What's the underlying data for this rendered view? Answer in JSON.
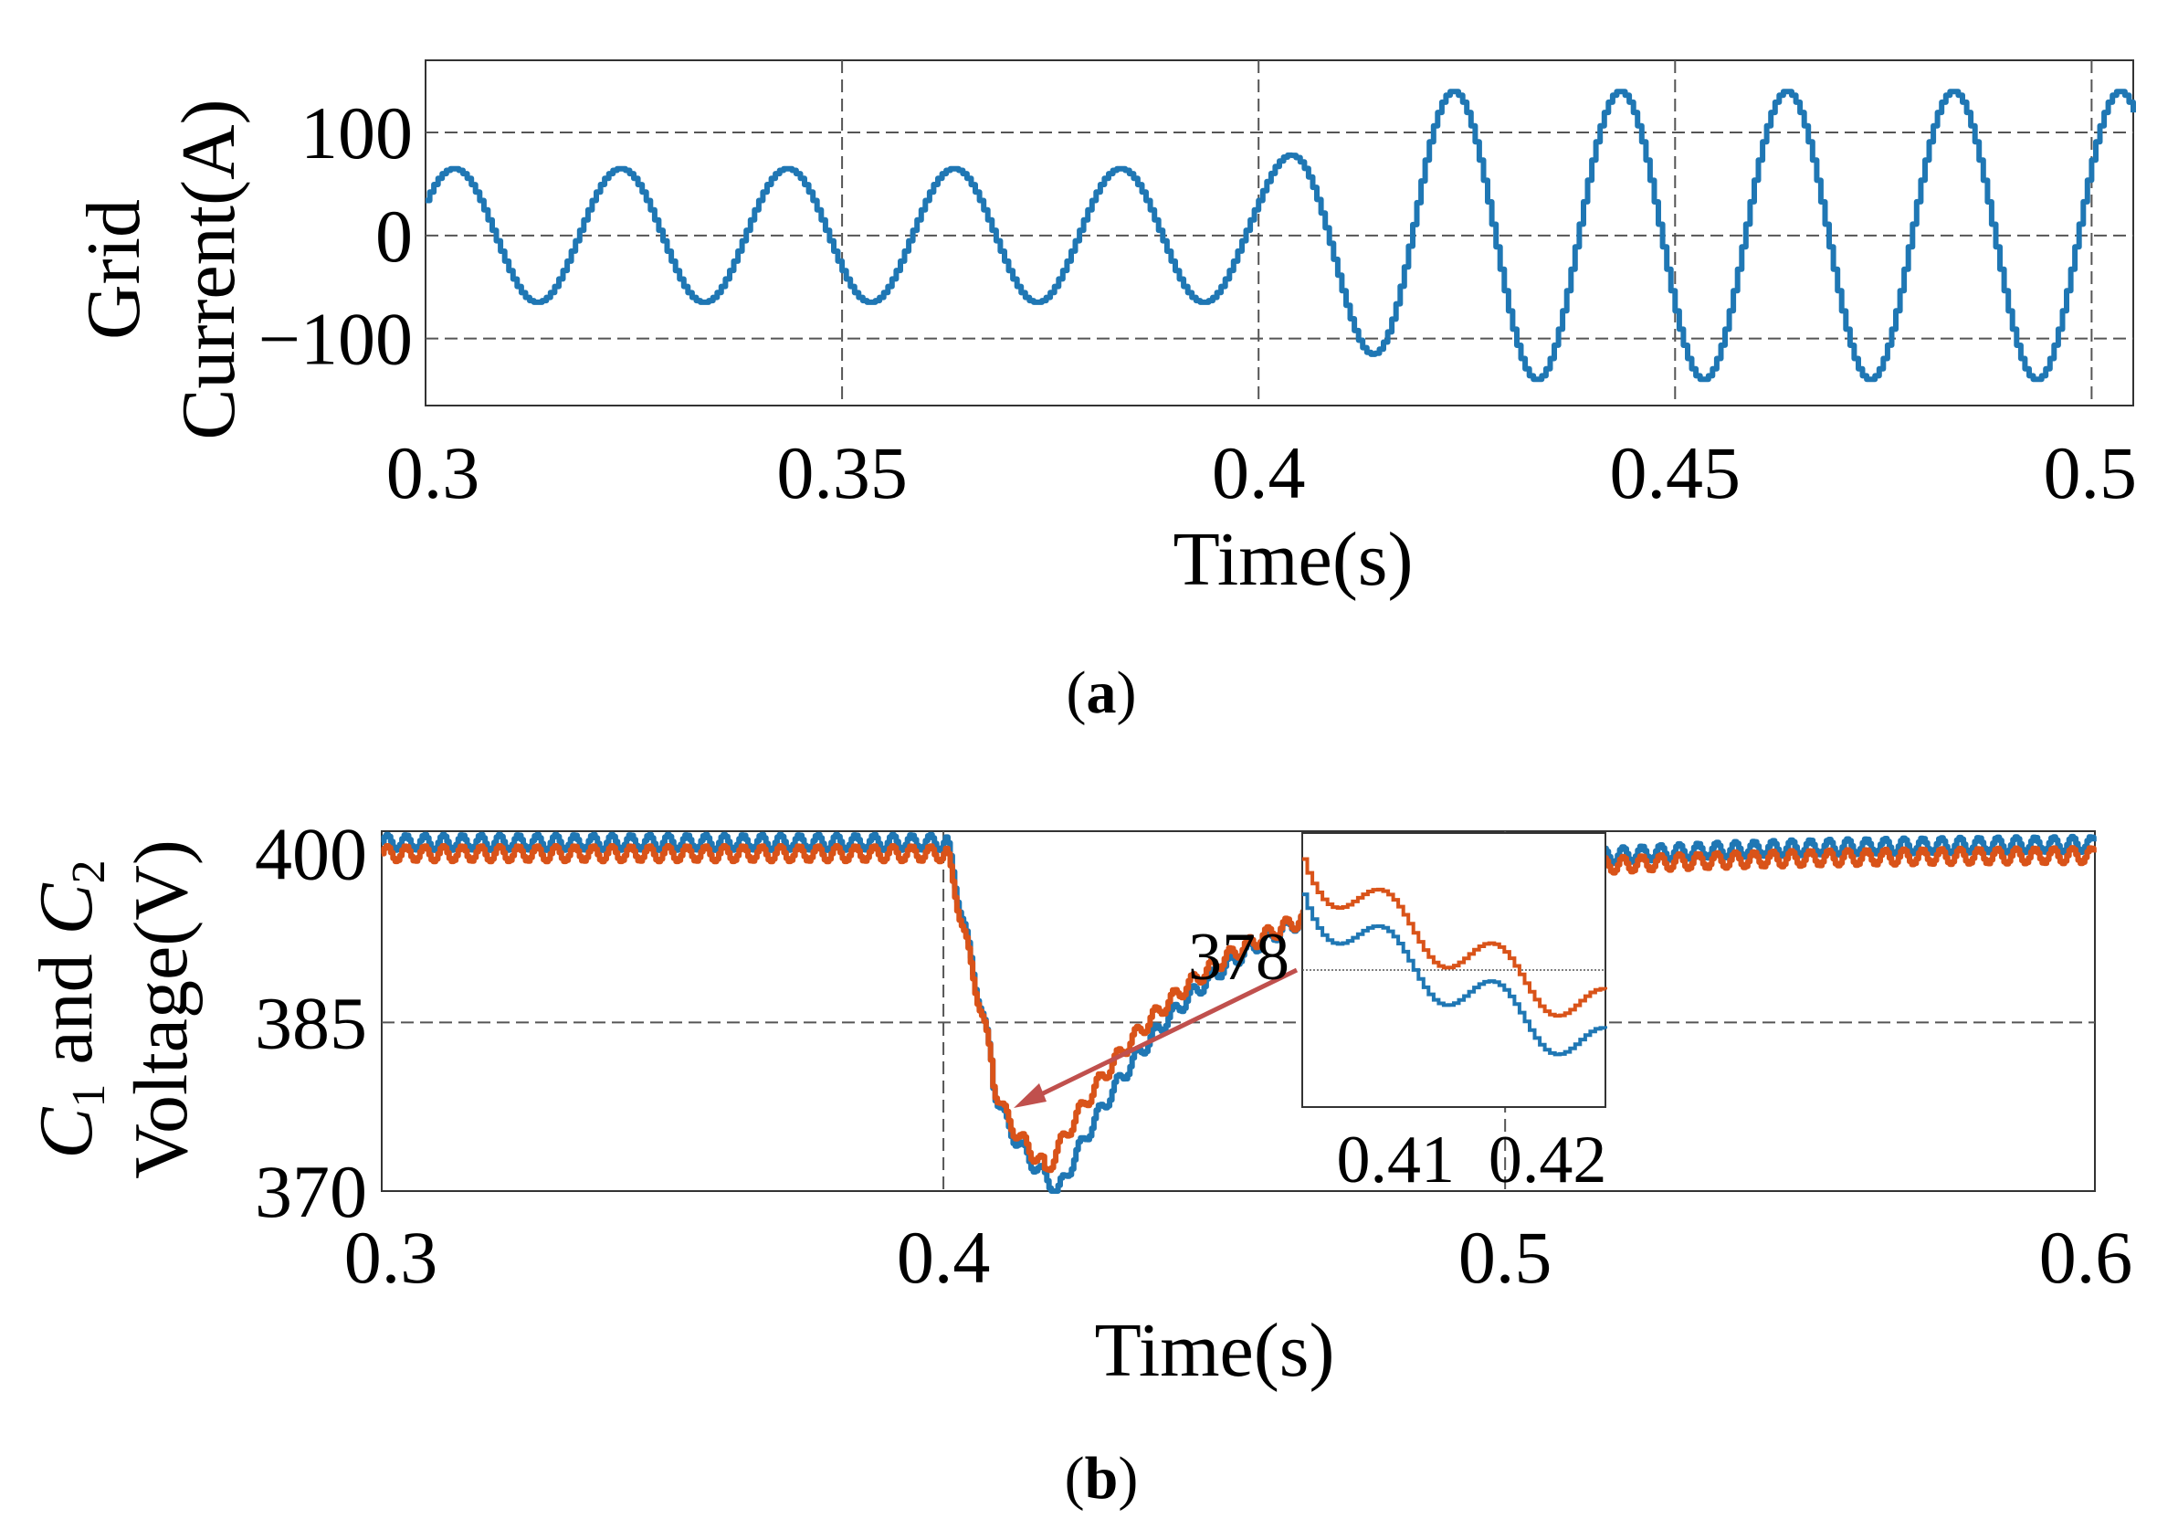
{
  "chart_data": [
    {
      "id": "a",
      "type": "line",
      "panel_label": {
        "open": "(",
        "letter": "a",
        "close": ")"
      },
      "ylabel_lines": [
        "Grid",
        "Current(A)"
      ],
      "xlabel": "Time(s)",
      "xlim": [
        0.3,
        0.505
      ],
      "ylim": [
        -165,
        170
      ],
      "xticks": [
        0.3,
        0.35,
        0.4,
        0.45,
        0.5
      ],
      "xtick_labels": [
        "0.3",
        "0.35",
        "0.4",
        "0.45",
        "0.5"
      ],
      "yticks": [
        -100,
        0,
        100
      ],
      "ytick_labels": [
        "−100",
        "0",
        "100"
      ],
      "grid": true,
      "series": [
        {
          "name": "Grid current",
          "color": "#1f77b4",
          "frequency_hz": 50,
          "amplitude_before": 65,
          "amplitude_after": 140,
          "step_time": 0.4,
          "x_start": 0.3,
          "x_end": 0.505,
          "stairstep": 0.0005
        }
      ]
    },
    {
      "id": "b",
      "type": "line",
      "panel_label": {
        "open": "(",
        "letter": "b",
        "close": ")"
      },
      "ylabel_line1": {
        "c1": "C",
        "sub1": "1",
        "mid": " and ",
        "c2": "C",
        "sub2": "2"
      },
      "ylabel_line2": "Voltage(V)",
      "xlabel": "Time(s)",
      "xlim": [
        0.3,
        0.605
      ],
      "ylim": [
        370,
        402
      ],
      "xticks": [
        0.3,
        0.4,
        0.5,
        0.6
      ],
      "xtick_labels": [
        "0.3",
        "0.4",
        "0.5",
        "0.6"
      ],
      "yticks": [
        370,
        385,
        400
      ],
      "ytick_labels": [
        "370",
        "385",
        "400"
      ],
      "grid": true,
      "series": [
        {
          "name": "C1 voltage",
          "color": "#1f77b4",
          "steady": 401,
          "min": 370.2,
          "min_time": 0.42,
          "ripple": 0.7
        },
        {
          "name": "C2 voltage",
          "color": "#d95319",
          "steady": 400,
          "min": 372.2,
          "min_time": 0.418,
          "ripple": 0.7
        }
      ],
      "annotation_arrow_color": "#c0504d",
      "inset": {
        "xlim": [
          0.405,
          0.423
        ],
        "ylim": [
          371,
          385
        ],
        "xticks": [
          0.41,
          0.42
        ],
        "xtick_labels": [
          "0.41",
          "0.42"
        ],
        "yticks": [
          378
        ],
        "ytick_labels": [
          "378"
        ],
        "series": [
          {
            "name": "C1 voltage",
            "color": "#1f77b4",
            "start": 382,
            "end": 373.8,
            "ripple": 1.2
          },
          {
            "name": "C2 voltage",
            "color": "#d95319",
            "start": 383.8,
            "end": 375.8,
            "ripple": 1.2
          }
        ]
      }
    }
  ]
}
